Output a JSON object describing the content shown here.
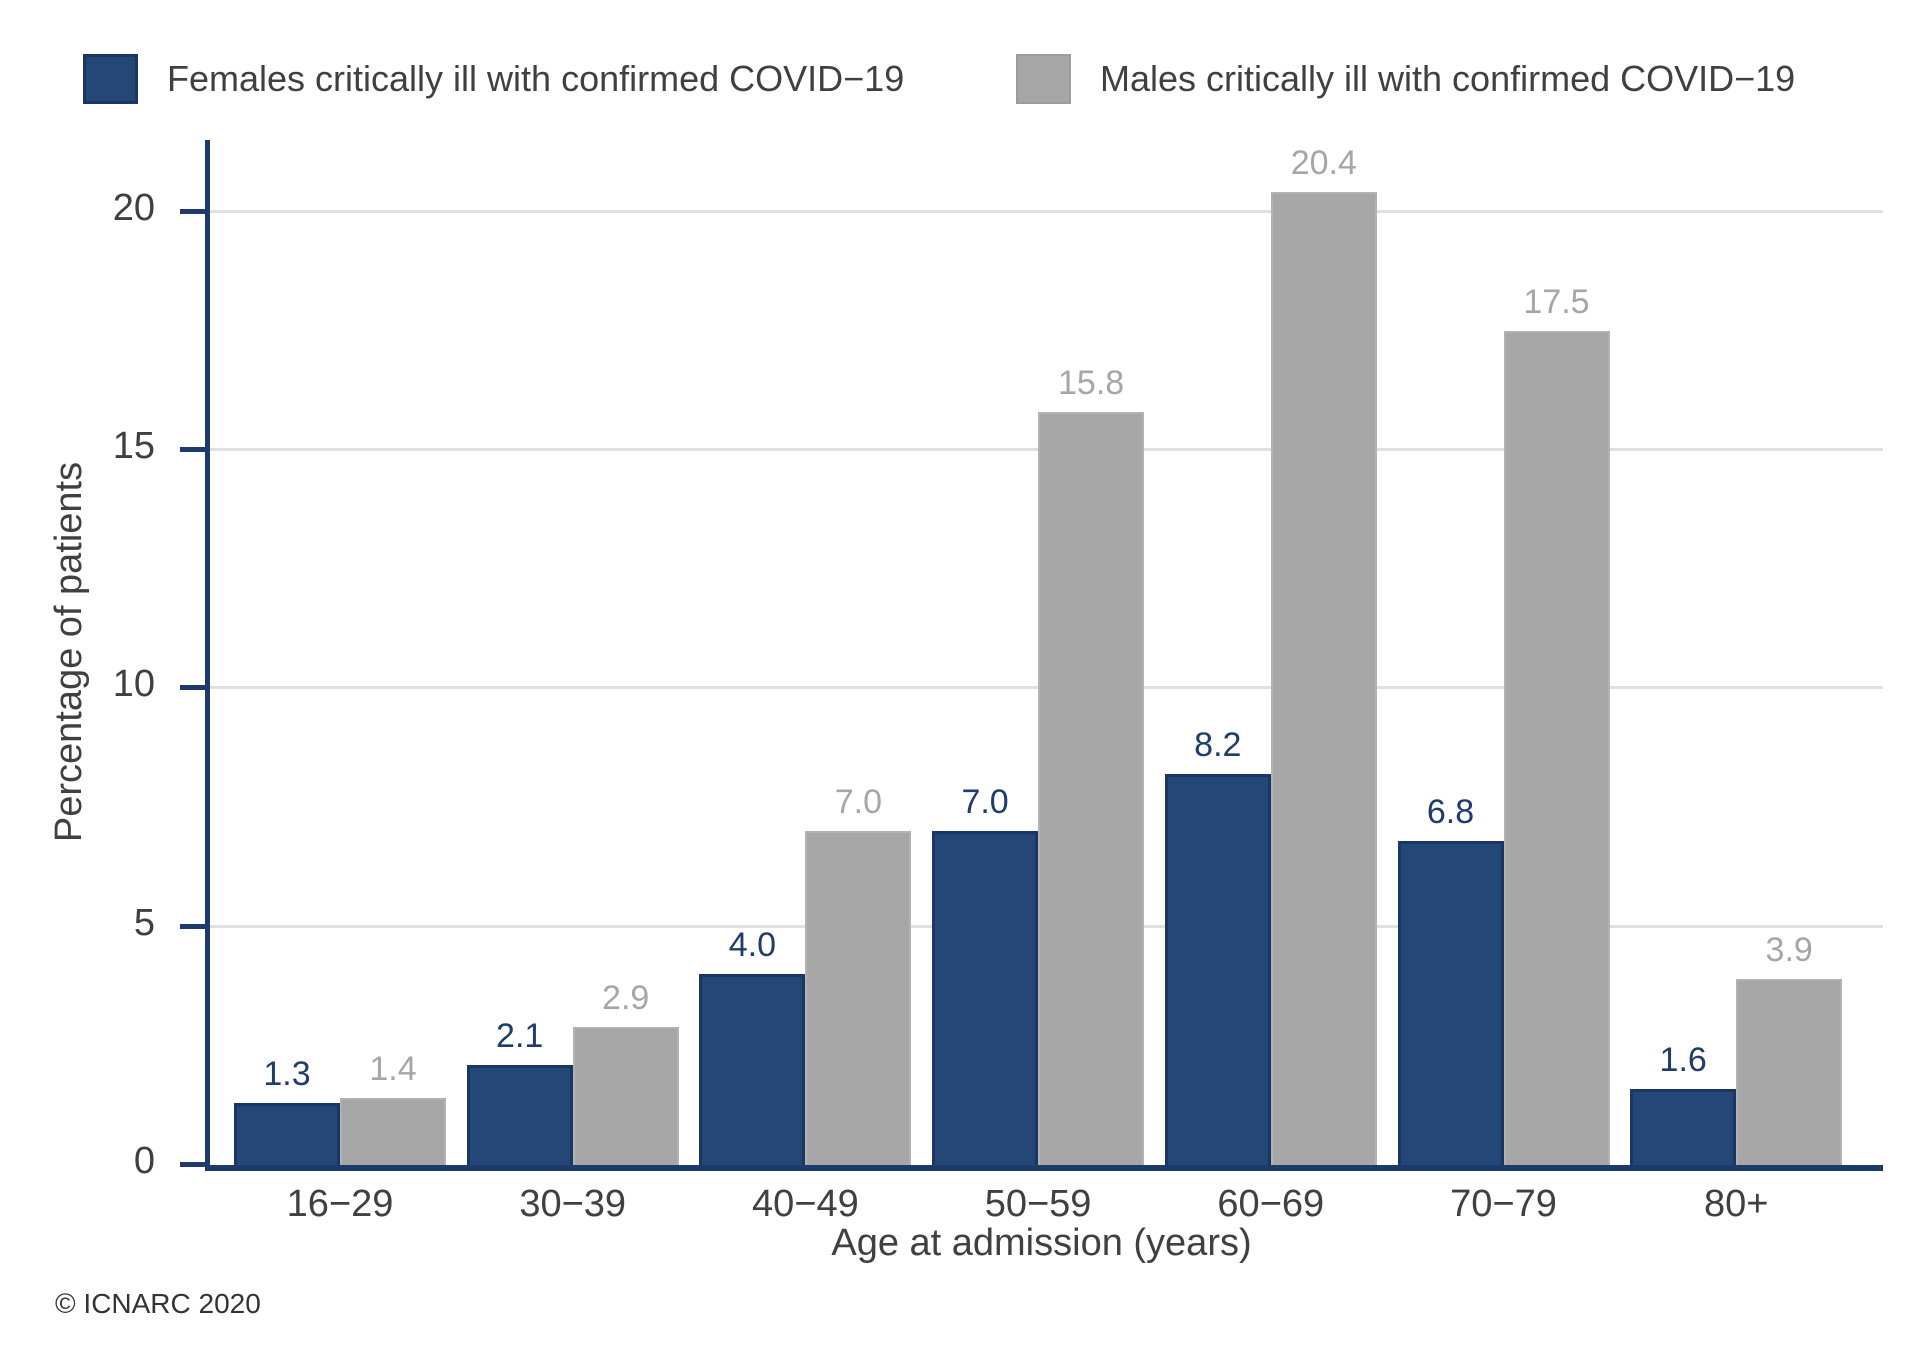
{
  "chart_data": {
    "type": "bar",
    "categories": [
      "16−29",
      "30−39",
      "40−49",
      "50−59",
      "60−69",
      "70−79",
      "80+"
    ],
    "series": [
      {
        "name": "Females critically ill with confirmed COVID−19",
        "values": [
          1.3,
          2.1,
          4.0,
          7.0,
          8.2,
          6.8,
          1.6
        ],
        "color": "#254778",
        "border_color": "#1a3763",
        "value_label_color": "#1f3c6d"
      },
      {
        "name": "Males critically ill with confirmed COVID−19",
        "values": [
          1.4,
          2.9,
          7.0,
          15.8,
          20.4,
          17.5,
          3.9
        ],
        "color": "#a6a6a6",
        "border_color": "#b2b2b2",
        "value_label_color": "#a6a6a6"
      }
    ],
    "xlabel": "Age at admission (years)",
    "ylabel": "Percentage of patients",
    "yticks": [
      0,
      5,
      10,
      15,
      20
    ],
    "ylim": [
      0,
      21.5
    ],
    "grid": true,
    "legend_position": "top",
    "value_labels": true,
    "footnote": "© ICNARC 2020",
    "colors": {
      "axis": "#1c3a6a",
      "grid": "#e0e0e0",
      "text": "#404040",
      "background": "#ffffff"
    }
  }
}
